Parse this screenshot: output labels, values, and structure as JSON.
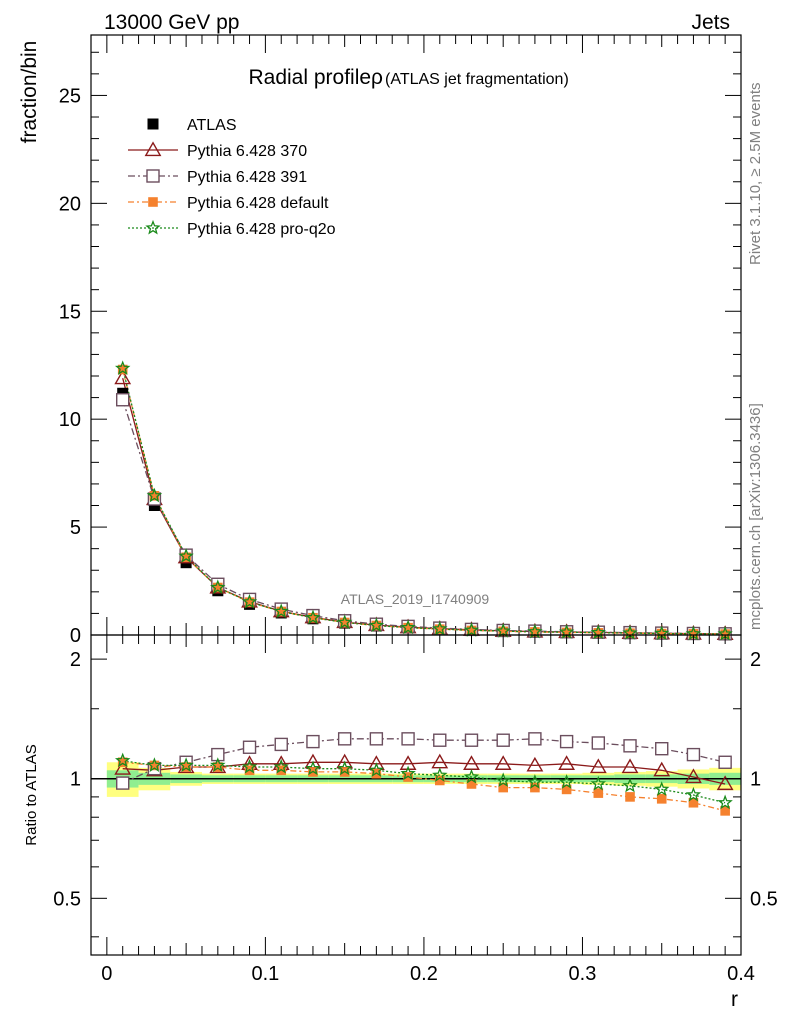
{
  "header": {
    "left": "13000 GeV pp",
    "right": "Jets"
  },
  "side": {
    "rivet": "Rivet 3.1.10, ≥ 2.5M events",
    "mcplots": "mcplots.cern.ch [arXiv:1306.3436]"
  },
  "analysis_id": "ATLAS_2019_I1740909",
  "chart_data": [
    {
      "type": "line",
      "title": "Radial profileρ",
      "subtitle": "(ATLAS jet fragmentation)",
      "xlabel": "r",
      "ylabel": "fraction/bin",
      "xlim": [
        -0.01,
        0.4
      ],
      "ylim": [
        0,
        27.8
      ],
      "yticks": [
        0,
        5,
        10,
        15,
        20,
        25
      ],
      "x": [
        0.01,
        0.03,
        0.05,
        0.07,
        0.09,
        0.11,
        0.13,
        0.15,
        0.17,
        0.19,
        0.21,
        0.23,
        0.25,
        0.27,
        0.29,
        0.31,
        0.33,
        0.35,
        0.37,
        0.39
      ],
      "series": [
        {
          "name": "ATLAS",
          "color": "#000000",
          "marker": "square",
          "values": [
            11.2,
            6.0,
            3.35,
            2.05,
            1.42,
            1.02,
            0.75,
            0.55,
            0.42,
            0.33,
            0.27,
            0.22,
            0.18,
            0.15,
            0.13,
            0.11,
            0.09,
            0.075,
            0.06,
            0.05
          ]
        },
        {
          "name": "Pythia 6.428 370",
          "color": "#8b1a1a",
          "marker": "triangle",
          "values": [
            11.9,
            6.3,
            3.6,
            2.2,
            1.55,
            1.1,
            0.82,
            0.6,
            0.46,
            0.36,
            0.29,
            0.24,
            0.19,
            0.16,
            0.14,
            0.12,
            0.1,
            0.08,
            0.063,
            0.05
          ]
        },
        {
          "name": "Pythia 6.428 391",
          "color": "#6b4e5e",
          "marker": "open-square",
          "values": [
            10.9,
            6.3,
            3.7,
            2.35,
            1.65,
            1.2,
            0.9,
            0.66,
            0.5,
            0.4,
            0.32,
            0.26,
            0.21,
            0.18,
            0.15,
            0.13,
            0.11,
            0.088,
            0.07,
            0.055
          ]
        },
        {
          "name": "Pythia 6.428 default",
          "color": "#f5812e",
          "marker": "filled-square",
          "values": [
            12.3,
            6.45,
            3.6,
            2.2,
            1.52,
            1.09,
            0.8,
            0.58,
            0.44,
            0.34,
            0.27,
            0.21,
            0.17,
            0.14,
            0.12,
            0.1,
            0.082,
            0.067,
            0.052,
            0.042
          ]
        },
        {
          "name": "Pythia 6.428 pro-q2o",
          "color": "#1a8a1a",
          "marker": "star",
          "values": [
            12.35,
            6.45,
            3.65,
            2.2,
            1.53,
            1.09,
            0.8,
            0.58,
            0.44,
            0.34,
            0.28,
            0.22,
            0.18,
            0.15,
            0.13,
            0.11,
            0.087,
            0.07,
            0.055,
            0.044
          ]
        }
      ]
    },
    {
      "type": "line",
      "ylabel": "Ratio to ATLAS",
      "xlabel": "r",
      "xlim": [
        -0.01,
        0.4
      ],
      "ylim": [
        0.36,
        2.3
      ],
      "yticks": [
        0.5,
        1,
        2
      ],
      "xticks": [
        0,
        0.1,
        0.2,
        0.3,
        0.4
      ],
      "band_x": [
        0.0,
        0.02,
        0.04,
        0.06,
        0.08,
        0.1,
        0.12,
        0.14,
        0.16,
        0.18,
        0.2,
        0.22,
        0.24,
        0.26,
        0.28,
        0.3,
        0.32,
        0.34,
        0.36,
        0.38,
        0.4
      ],
      "band_inner": [
        0.05,
        0.035,
        0.025,
        0.02,
        0.02,
        0.02,
        0.02,
        0.02,
        0.02,
        0.02,
        0.02,
        0.02,
        0.02,
        0.02,
        0.02,
        0.02,
        0.025,
        0.025,
        0.03,
        0.035
      ],
      "band_outer": [
        0.1,
        0.065,
        0.04,
        0.03,
        0.03,
        0.03,
        0.03,
        0.03,
        0.03,
        0.03,
        0.03,
        0.03,
        0.03,
        0.03,
        0.03,
        0.035,
        0.04,
        0.045,
        0.055,
        0.065
      ],
      "x": [
        0.01,
        0.03,
        0.05,
        0.07,
        0.09,
        0.11,
        0.13,
        0.15,
        0.17,
        0.19,
        0.21,
        0.23,
        0.25,
        0.27,
        0.29,
        0.31,
        0.33,
        0.35,
        0.37,
        0.39
      ],
      "series": [
        {
          "name": "Pythia 6.428 370",
          "color": "#8b1a1a",
          "marker": "triangle",
          "values": [
            1.06,
            1.05,
            1.07,
            1.07,
            1.09,
            1.09,
            1.1,
            1.1,
            1.09,
            1.09,
            1.1,
            1.09,
            1.09,
            1.08,
            1.09,
            1.07,
            1.07,
            1.05,
            1.01,
            0.97
          ]
        },
        {
          "name": "Pythia 6.428 391",
          "color": "#6b4e5e",
          "marker": "open-square",
          "values": [
            0.975,
            1.06,
            1.1,
            1.15,
            1.2,
            1.22,
            1.24,
            1.26,
            1.26,
            1.26,
            1.25,
            1.25,
            1.25,
            1.26,
            1.24,
            1.23,
            1.21,
            1.19,
            1.15,
            1.1
          ]
        },
        {
          "name": "Pythia 6.428 default",
          "color": "#f5812e",
          "marker": "filled-square",
          "values": [
            1.1,
            1.08,
            1.07,
            1.07,
            1.05,
            1.05,
            1.04,
            1.04,
            1.03,
            1.01,
            0.99,
            0.97,
            0.95,
            0.95,
            0.94,
            0.92,
            0.9,
            0.89,
            0.87,
            0.83
          ]
        },
        {
          "name": "Pythia 6.428 pro-q2o",
          "color": "#1a8a1a",
          "marker": "star",
          "values": [
            1.11,
            1.08,
            1.08,
            1.08,
            1.07,
            1.07,
            1.06,
            1.06,
            1.05,
            1.03,
            1.02,
            1.01,
            0.99,
            0.98,
            0.98,
            0.97,
            0.96,
            0.94,
            0.91,
            0.87
          ]
        }
      ]
    }
  ]
}
